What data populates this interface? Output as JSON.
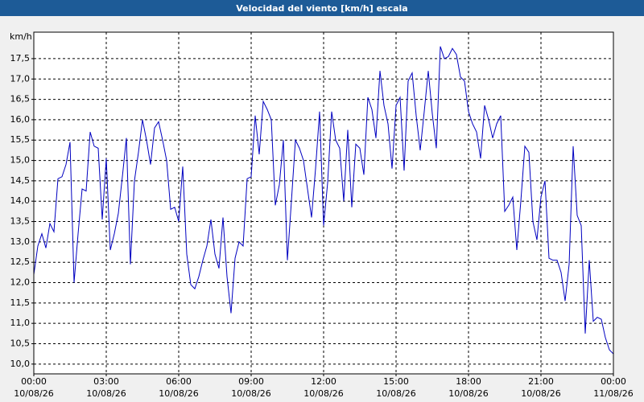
{
  "chart_data": {
    "type": "line",
    "title": "Velocidad del viento [km/h] escala",
    "y_label": "km/h",
    "x": [
      0,
      10,
      20,
      30,
      40,
      50,
      60,
      70,
      80,
      90,
      100,
      110,
      120,
      130,
      140,
      150,
      160,
      170,
      180,
      190,
      200,
      210,
      220,
      230,
      240,
      250,
      260,
      270,
      280,
      290,
      300,
      310,
      320,
      330,
      340,
      350,
      360,
      370,
      380,
      390,
      400,
      410,
      420,
      430,
      440,
      450,
      460,
      470,
      480,
      490,
      500,
      510,
      520,
      530,
      540,
      550,
      560,
      570,
      580,
      590,
      600,
      610,
      620,
      630,
      640,
      650,
      660,
      670,
      680,
      690,
      700,
      710,
      720,
      730,
      740,
      750,
      760,
      770,
      780,
      790,
      800,
      810,
      820,
      830,
      840,
      850,
      860,
      870,
      880,
      890,
      900,
      910,
      920,
      930,
      940,
      950,
      960,
      970,
      980,
      990,
      1000,
      1010,
      1020,
      1030,
      1040,
      1050,
      1060,
      1070,
      1080,
      1090,
      1100,
      1110,
      1120,
      1130,
      1140,
      1150,
      1160,
      1170,
      1180,
      1190,
      1200,
      1210,
      1220,
      1230,
      1240,
      1250,
      1260,
      1270,
      1280,
      1290,
      1300,
      1310,
      1320,
      1330,
      1340,
      1350,
      1360,
      1370,
      1380,
      1390,
      1400,
      1410,
      1420,
      1430,
      1440
    ],
    "series": [
      {
        "color": "#0000c0",
        "values": [
          12.2,
          12.9,
          13.2,
          12.85,
          13.45,
          13.25,
          14.55,
          14.6,
          14.9,
          15.45,
          12.0,
          13.2,
          14.3,
          14.25,
          15.7,
          15.35,
          15.3,
          13.55,
          15.05,
          12.8,
          13.2,
          13.7,
          14.6,
          15.55,
          12.45,
          14.5,
          15.2,
          16.0,
          15.5,
          14.9,
          15.8,
          15.95,
          15.5,
          15.0,
          13.8,
          13.85,
          13.5,
          14.85,
          12.7,
          11.95,
          11.85,
          12.15,
          12.55,
          12.9,
          13.55,
          12.7,
          12.35,
          13.6,
          12.15,
          11.25,
          12.6,
          13.0,
          12.9,
          14.55,
          14.6,
          16.1,
          15.15,
          16.45,
          16.25,
          16.0,
          13.9,
          14.4,
          15.5,
          12.55,
          14.0,
          15.5,
          15.3,
          15.0,
          14.3,
          13.6,
          14.8,
          16.2,
          13.4,
          14.45,
          16.2,
          15.5,
          15.3,
          14.0,
          15.75,
          13.85,
          15.4,
          15.3,
          14.65,
          16.55,
          16.25,
          15.55,
          17.2,
          16.35,
          15.9,
          14.8,
          16.35,
          16.55,
          14.75,
          16.95,
          17.15,
          16.1,
          15.25,
          16.2,
          17.2,
          16.15,
          15.3,
          17.8,
          17.5,
          17.55,
          17.75,
          17.6,
          17.05,
          16.95,
          16.2,
          15.9,
          15.7,
          15.05,
          16.35,
          16.0,
          15.55,
          15.9,
          16.1,
          13.75,
          13.9,
          14.1,
          12.8,
          14.0,
          15.35,
          15.2,
          13.5,
          13.05,
          14.1,
          14.5,
          12.6,
          12.55,
          12.55,
          12.25,
          11.55,
          12.45,
          15.35,
          13.65,
          13.4,
          10.75,
          12.55,
          11.05,
          11.15,
          11.1,
          10.65,
          10.35,
          10.25
        ]
      }
    ],
    "xlim": [
      0,
      1440
    ],
    "xticks": [
      {
        "value": 0,
        "label": "00:00",
        "date": "10/08/26"
      },
      {
        "value": 180,
        "label": "03:00",
        "date": "10/08/26"
      },
      {
        "value": 360,
        "label": "06:00",
        "date": "10/08/26"
      },
      {
        "value": 540,
        "label": "09:00",
        "date": "10/08/26"
      },
      {
        "value": 720,
        "label": "12:00",
        "date": "10/08/26"
      },
      {
        "value": 900,
        "label": "15:00",
        "date": "10/08/26"
      },
      {
        "value": 1080,
        "label": "18:00",
        "date": "10/08/26"
      },
      {
        "value": 1260,
        "label": "21:00",
        "date": "10/08/26"
      },
      {
        "value": 1440,
        "label": "00:00",
        "date": "11/08/26"
      }
    ],
    "ylim": [
      9.76,
      18.15
    ],
    "yticks": [
      {
        "value": 10,
        "label": "10,0"
      },
      {
        "value": 10.5,
        "label": "10,5"
      },
      {
        "value": 11,
        "label": "11,0"
      },
      {
        "value": 11.5,
        "label": "11,5"
      },
      {
        "value": 12,
        "label": "12,0"
      },
      {
        "value": 12.5,
        "label": "12,5"
      },
      {
        "value": 13,
        "label": "13,0"
      },
      {
        "value": 13.5,
        "label": "13,5"
      },
      {
        "value": 14,
        "label": "14,0"
      },
      {
        "value": 14.5,
        "label": "14,5"
      },
      {
        "value": 15,
        "label": "15,0"
      },
      {
        "value": 15.5,
        "label": "15,5"
      },
      {
        "value": 16,
        "label": "16,0"
      },
      {
        "value": 16.5,
        "label": "16,5"
      },
      {
        "value": 17,
        "label": "17,0"
      },
      {
        "value": 17.5,
        "label": "17,5"
      }
    ],
    "grid": true
  }
}
